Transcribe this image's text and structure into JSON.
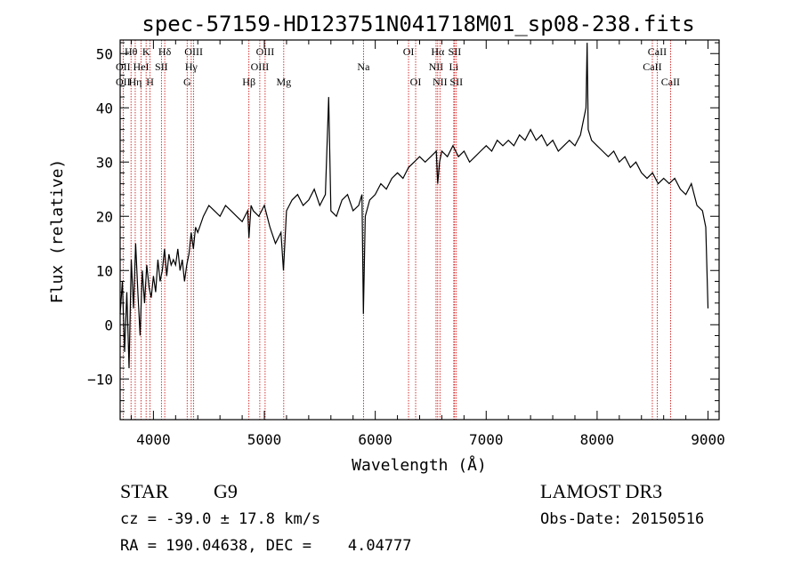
{
  "chart_data": {
    "type": "line",
    "title": "spec-57159-HD123751N041718M01_sp08-238.fits",
    "xlabel": "Wavelength (Å)",
    "ylabel": "Flux (relative)",
    "xlim": [
      3700,
      9100
    ],
    "ylim": [
      -17.5,
      52.5
    ],
    "x_ticks": [
      4000,
      5000,
      6000,
      7000,
      8000,
      9000
    ],
    "y_ticks": [
      -10,
      0,
      10,
      20,
      30,
      40,
      50
    ],
    "series": [
      {
        "name": "flux",
        "x": [
          3700,
          3720,
          3740,
          3760,
          3780,
          3800,
          3820,
          3840,
          3860,
          3880,
          3900,
          3920,
          3940,
          3960,
          3980,
          4000,
          4020,
          4040,
          4060,
          4080,
          4100,
          4120,
          4140,
          4160,
          4180,
          4200,
          4220,
          4240,
          4260,
          4280,
          4300,
          4320,
          4340,
          4360,
          4380,
          4400,
          4450,
          4500,
          4550,
          4600,
          4650,
          4700,
          4750,
          4800,
          4850,
          4861,
          4880,
          4900,
          4950,
          5000,
          5050,
          5100,
          5150,
          5172,
          5200,
          5250,
          5300,
          5350,
          5400,
          5450,
          5500,
          5550,
          5580,
          5600,
          5650,
          5700,
          5750,
          5800,
          5850,
          5880,
          5893,
          5910,
          5950,
          6000,
          6050,
          6100,
          6150,
          6200,
          6250,
          6300,
          6350,
          6400,
          6450,
          6500,
          6550,
          6563,
          6580,
          6600,
          6650,
          6700,
          6750,
          6800,
          6850,
          6900,
          6950,
          7000,
          7050,
          7100,
          7150,
          7200,
          7250,
          7300,
          7350,
          7400,
          7450,
          7500,
          7550,
          7600,
          7650,
          7700,
          7750,
          7800,
          7850,
          7900,
          7910,
          7920,
          7950,
          8000,
          8050,
          8100,
          8150,
          8200,
          8250,
          8300,
          8350,
          8400,
          8450,
          8500,
          8550,
          8600,
          8650,
          8700,
          8750,
          8800,
          8850,
          8900,
          8950,
          8980,
          9000
        ],
        "y": [
          2,
          8,
          -5,
          6,
          -8,
          12,
          3,
          15,
          6,
          -2,
          10,
          4,
          11,
          7,
          5,
          9,
          6,
          12,
          8,
          10,
          14,
          9,
          13,
          11,
          12,
          11,
          14,
          10,
          12,
          8,
          11,
          13,
          17,
          14,
          18,
          17,
          20,
          22,
          21,
          20,
          22,
          21,
          20,
          19,
          21,
          16,
          22,
          21,
          20,
          22,
          18,
          15,
          17,
          10,
          21,
          23,
          24,
          22,
          23,
          25,
          22,
          24,
          42,
          21,
          20,
          23,
          24,
          21,
          22,
          24,
          2,
          20,
          23,
          24,
          26,
          25,
          27,
          28,
          27,
          29,
          30,
          31,
          30,
          31,
          32,
          26,
          30,
          32,
          31,
          33,
          31,
          32,
          30,
          31,
          32,
          33,
          32,
          34,
          33,
          34,
          33,
          35,
          34,
          36,
          34,
          35,
          33,
          34,
          32,
          33,
          34,
          33,
          35,
          40,
          52,
          36,
          34,
          33,
          32,
          31,
          32,
          30,
          31,
          29,
          30,
          28,
          27,
          28,
          26,
          27,
          26,
          27,
          25,
          24,
          26,
          22,
          21,
          18,
          3
        ]
      }
    ],
    "lines_red": [
      {
        "name": "OII",
        "x": 3727
      },
      {
        "name": "Hθ",
        "x": 3798
      },
      {
        "name": "Hη",
        "x": 3836
      },
      {
        "name": "HeI",
        "x": 3889
      },
      {
        "name": "K",
        "x": 3934
      },
      {
        "name": "H",
        "x": 3969
      },
      {
        "name": "SII",
        "x": 4072
      },
      {
        "name": "Hδ",
        "x": 4102
      },
      {
        "name": "G",
        "x": 4304
      },
      {
        "name": "Hγ",
        "x": 4341
      },
      {
        "name": "OIII",
        "x": 4363
      },
      {
        "name": "Hβ",
        "x": 4861
      },
      {
        "name": "OIII",
        "x": 4959
      },
      {
        "name": "OIII",
        "x": 5007
      },
      {
        "name": "Mg",
        "x": 5175
      },
      {
        "name": "Na",
        "x": 5894
      },
      {
        "name": "OI",
        "x": 6300
      },
      {
        "name": "OI",
        "x": 6364
      },
      {
        "name": "NII",
        "x": 6548
      },
      {
        "name": "Hα",
        "x": 6563
      },
      {
        "name": "NII",
        "x": 6583
      },
      {
        "name": "Li",
        "x": 6708
      },
      {
        "name": "SII",
        "x": 6716
      },
      {
        "name": "SII",
        "x": 6731
      },
      {
        "name": "CaII",
        "x": 8498
      },
      {
        "name": "CaII",
        "x": 8542
      },
      {
        "name": "CaII",
        "x": 8662
      }
    ],
    "labels": [
      {
        "text": "Hθ",
        "x": 3798,
        "row": 0
      },
      {
        "text": "K",
        "x": 3934,
        "row": 0
      },
      {
        "text": "Hδ",
        "x": 4102,
        "row": 0
      },
      {
        "text": "OIII",
        "x": 4363,
        "row": 0
      },
      {
        "text": "OIII",
        "x": 5007,
        "row": 0
      },
      {
        "text": "OI",
        "x": 6300,
        "row": 0
      },
      {
        "text": "Hα",
        "x": 6563,
        "row": 0
      },
      {
        "text": "SII",
        "x": 6716,
        "row": 0
      },
      {
        "text": "CaII",
        "x": 8542,
        "row": 0
      },
      {
        "text": "OII",
        "x": 3727,
        "row": 1
      },
      {
        "text": "HeI",
        "x": 3889,
        "row": 1
      },
      {
        "text": "SII",
        "x": 4072,
        "row": 1
      },
      {
        "text": "Hγ",
        "x": 4341,
        "row": 1
      },
      {
        "text": "OIII",
        "x": 4959,
        "row": 1
      },
      {
        "text": "Na",
        "x": 5894,
        "row": 1
      },
      {
        "text": "NII",
        "x": 6548,
        "row": 1
      },
      {
        "text": "Li",
        "x": 6708,
        "row": 1
      },
      {
        "text": "CaII",
        "x": 8498,
        "row": 1
      },
      {
        "text": "OII",
        "x": 3727,
        "row": 2
      },
      {
        "text": "Hη",
        "x": 3836,
        "row": 2
      },
      {
        "text": "H",
        "x": 3969,
        "row": 2
      },
      {
        "text": "G",
        "x": 4304,
        "row": 2
      },
      {
        "text": "Hβ",
        "x": 4861,
        "row": 2
      },
      {
        "text": "Mg",
        "x": 5175,
        "row": 2
      },
      {
        "text": "OI",
        "x": 6364,
        "row": 2
      },
      {
        "text": "NII",
        "x": 6583,
        "row": 2
      },
      {
        "text": "SII",
        "x": 6731,
        "row": 2
      },
      {
        "text": "CaII",
        "x": 8662,
        "row": 2
      }
    ],
    "colors": {
      "spectrum": "#000000",
      "line_markers": "#cc0000",
      "axes": "#000000"
    }
  },
  "info": {
    "class_label": "STAR",
    "subclass": "G9",
    "survey": "LAMOST DR3",
    "cz": "cz = -39.0 ± 17.8 km/s",
    "obs_date": "Obs-Date: 20150516",
    "coords": "RA = 190.04638, DEC =    4.04777"
  }
}
